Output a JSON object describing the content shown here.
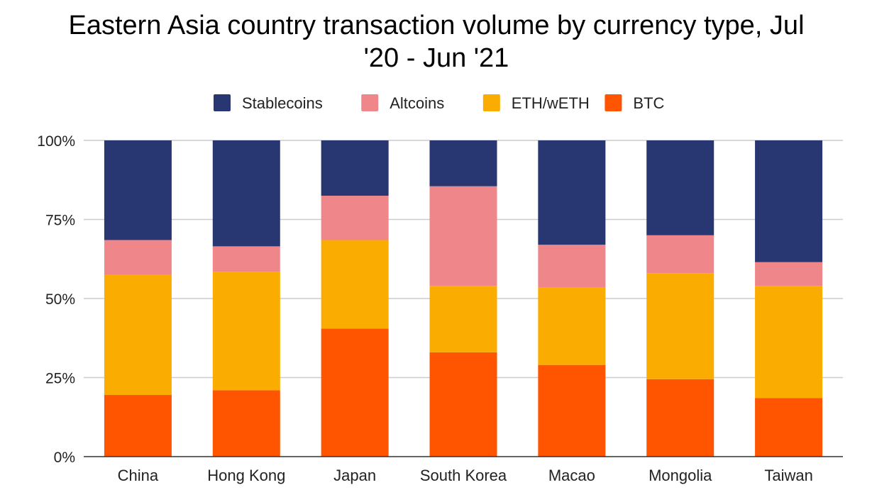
{
  "chart_data": {
    "type": "bar",
    "stacked": true,
    "percent": true,
    "title_lines": [
      "Eastern Asia country transaction volume by currency type, Jul",
      "'20 - Jun '21"
    ],
    "categories": [
      "China",
      "Hong Kong",
      "Japan",
      "South Korea",
      "Macao",
      "Mongolia",
      "Taiwan"
    ],
    "y_ticks": [
      "0%",
      "25%",
      "50%",
      "75%",
      "100%"
    ],
    "ylim": [
      0,
      100
    ],
    "grid": true,
    "legend_position": "top",
    "series": [
      {
        "name": "BTC",
        "color": "#ff5500",
        "values": [
          19.5,
          21,
          40.5,
          33,
          29,
          24.5,
          18.5
        ]
      },
      {
        "name": "ETH/wETH",
        "color": "#fbac00",
        "values": [
          38,
          37.5,
          28,
          21,
          24.5,
          33.5,
          35.5
        ]
      },
      {
        "name": "Altcoins",
        "color": "#ef878a",
        "values": [
          11,
          8,
          14,
          31.5,
          13.5,
          12,
          7.5
        ]
      },
      {
        "name": "Stablecoins",
        "color": "#283771",
        "values": [
          31.5,
          33.5,
          17.5,
          14.5,
          33,
          30,
          38.5
        ]
      }
    ],
    "legend_order": [
      "Stablecoins",
      "Altcoins",
      "ETH/wETH",
      "BTC"
    ]
  }
}
